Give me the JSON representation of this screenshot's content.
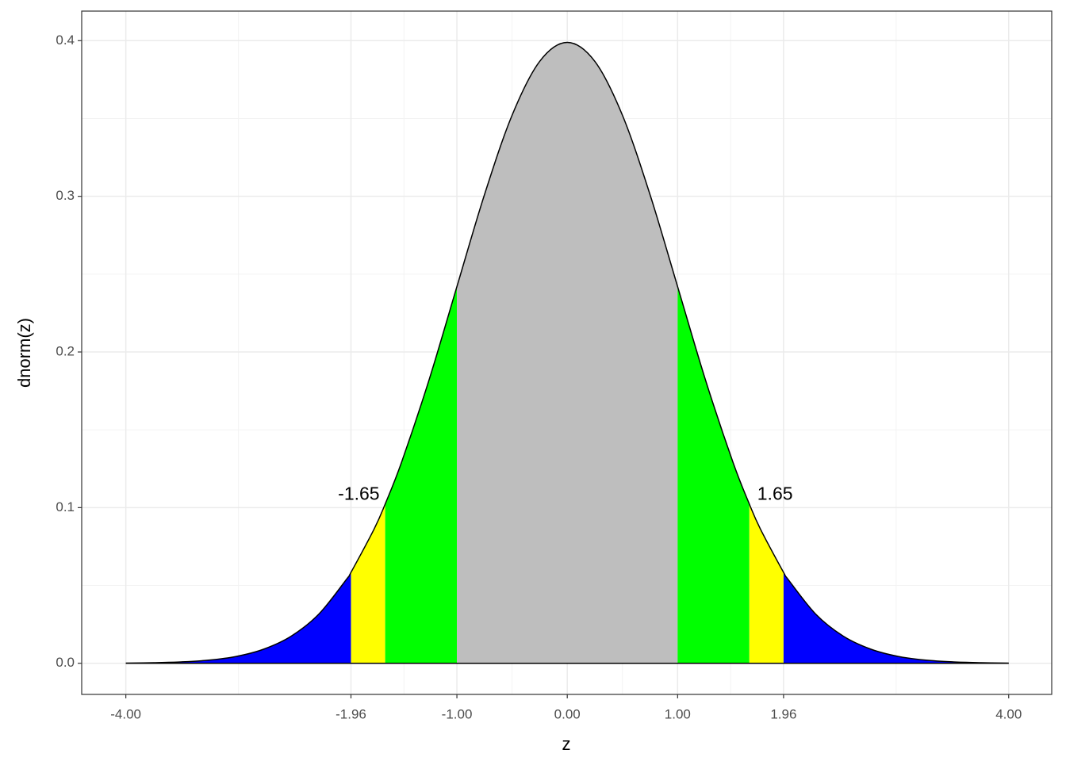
{
  "chart_data": {
    "type": "area",
    "x_label": "z",
    "y_label": "dnorm(z)",
    "x": [
      -4,
      -3.75,
      -3.5,
      -3.25,
      -3,
      -2.75,
      -2.5,
      -2.25,
      -2,
      -1.96,
      -1.75,
      -1.65,
      -1.5,
      -1.25,
      -1,
      -0.75,
      -0.5,
      -0.25,
      0,
      0.25,
      0.5,
      0.75,
      1,
      1.25,
      1.5,
      1.65,
      1.75,
      1.96,
      2,
      2.25,
      2.5,
      2.75,
      3,
      3.25,
      3.5,
      3.75,
      4
    ],
    "values": [
      0.0001,
      0.0004,
      0.0009,
      0.002,
      0.0044,
      0.0091,
      0.0175,
      0.0317,
      0.054,
      0.0584,
      0.0863,
      0.1023,
      0.1295,
      0.1826,
      0.242,
      0.3011,
      0.3521,
      0.3867,
      0.3989,
      0.3867,
      0.3521,
      0.3011,
      0.242,
      0.1826,
      0.1295,
      0.1023,
      0.0863,
      0.0584,
      0.054,
      0.0317,
      0.0175,
      0.0091,
      0.0044,
      0.002,
      0.0009,
      0.0004,
      0.0001
    ],
    "line_color": "#000000",
    "regions": [
      {
        "from": -4,
        "to": -1.96,
        "color": "#0000ff"
      },
      {
        "from": -1.96,
        "to": -1.65,
        "color": "#ffff00"
      },
      {
        "from": -1.65,
        "to": -1,
        "color": "#00ff00"
      },
      {
        "from": -1,
        "to": 1,
        "color": "#bebebe"
      },
      {
        "from": 1,
        "to": 1.65,
        "color": "#00ff00"
      },
      {
        "from": 1.65,
        "to": 1.96,
        "color": "#ffff00"
      },
      {
        "from": 1.96,
        "to": 4,
        "color": "#0000ff"
      }
    ],
    "annotations": [
      {
        "text": "-1.65",
        "x": -1.65,
        "y": 0.108,
        "align": "right"
      },
      {
        "text": "1.65",
        "x": 1.65,
        "y": 0.108,
        "align": "left"
      }
    ],
    "xlim": [
      -4.4,
      4.39
    ],
    "ylim": [
      -0.02,
      0.419
    ],
    "xticks": [
      {
        "value": -4,
        "label": "-4.00"
      },
      {
        "value": -1.96,
        "label": "-1.96"
      },
      {
        "value": -1,
        "label": "-1.00"
      },
      {
        "value": 0,
        "label": "0.00"
      },
      {
        "value": 1,
        "label": "1.00"
      },
      {
        "value": 1.96,
        "label": "1.96"
      },
      {
        "value": 4,
        "label": "4.00"
      }
    ],
    "xminor": [
      -2.98,
      -1.48,
      -0.5,
      0.5,
      1.48,
      2.98
    ],
    "yticks": [
      {
        "value": 0,
        "label": "0.0"
      },
      0.1,
      0.2,
      0.3,
      0.4
    ],
    "yminor": [
      0.05,
      0.15,
      0.25,
      0.35
    ],
    "grid": true
  }
}
